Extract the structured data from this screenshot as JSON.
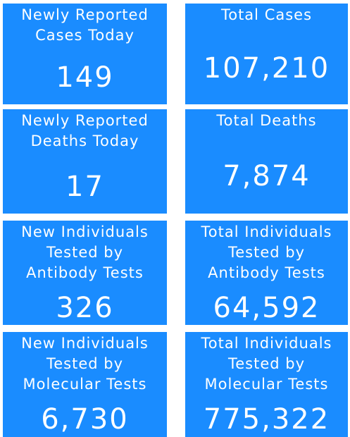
{
  "tiles": [
    {
      "label_lines": [
        "Newly Reported",
        "Cases Today"
      ],
      "value": "149"
    },
    {
      "label_lines": [
        "Total Cases"
      ],
      "value": "107,210"
    },
    {
      "label_lines": [
        "Newly Reported",
        "Deaths Today"
      ],
      "value": "17"
    },
    {
      "label_lines": [
        "Total Deaths"
      ],
      "value": "7,874"
    },
    {
      "label_lines": [
        "New Individuals",
        "Tested by",
        "Antibody Tests"
      ],
      "value": "326"
    },
    {
      "label_lines": [
        "Total Individuals",
        "Tested by",
        "Antibody Tests"
      ],
      "value": "64,592"
    },
    {
      "label_lines": [
        "New Individuals",
        "Tested by",
        "Molecular Tests"
      ],
      "value": "6,730"
    },
    {
      "label_lines": [
        "Total Individuals",
        "Tested by",
        "Molecular Tests"
      ],
      "value": "775,322"
    }
  ]
}
